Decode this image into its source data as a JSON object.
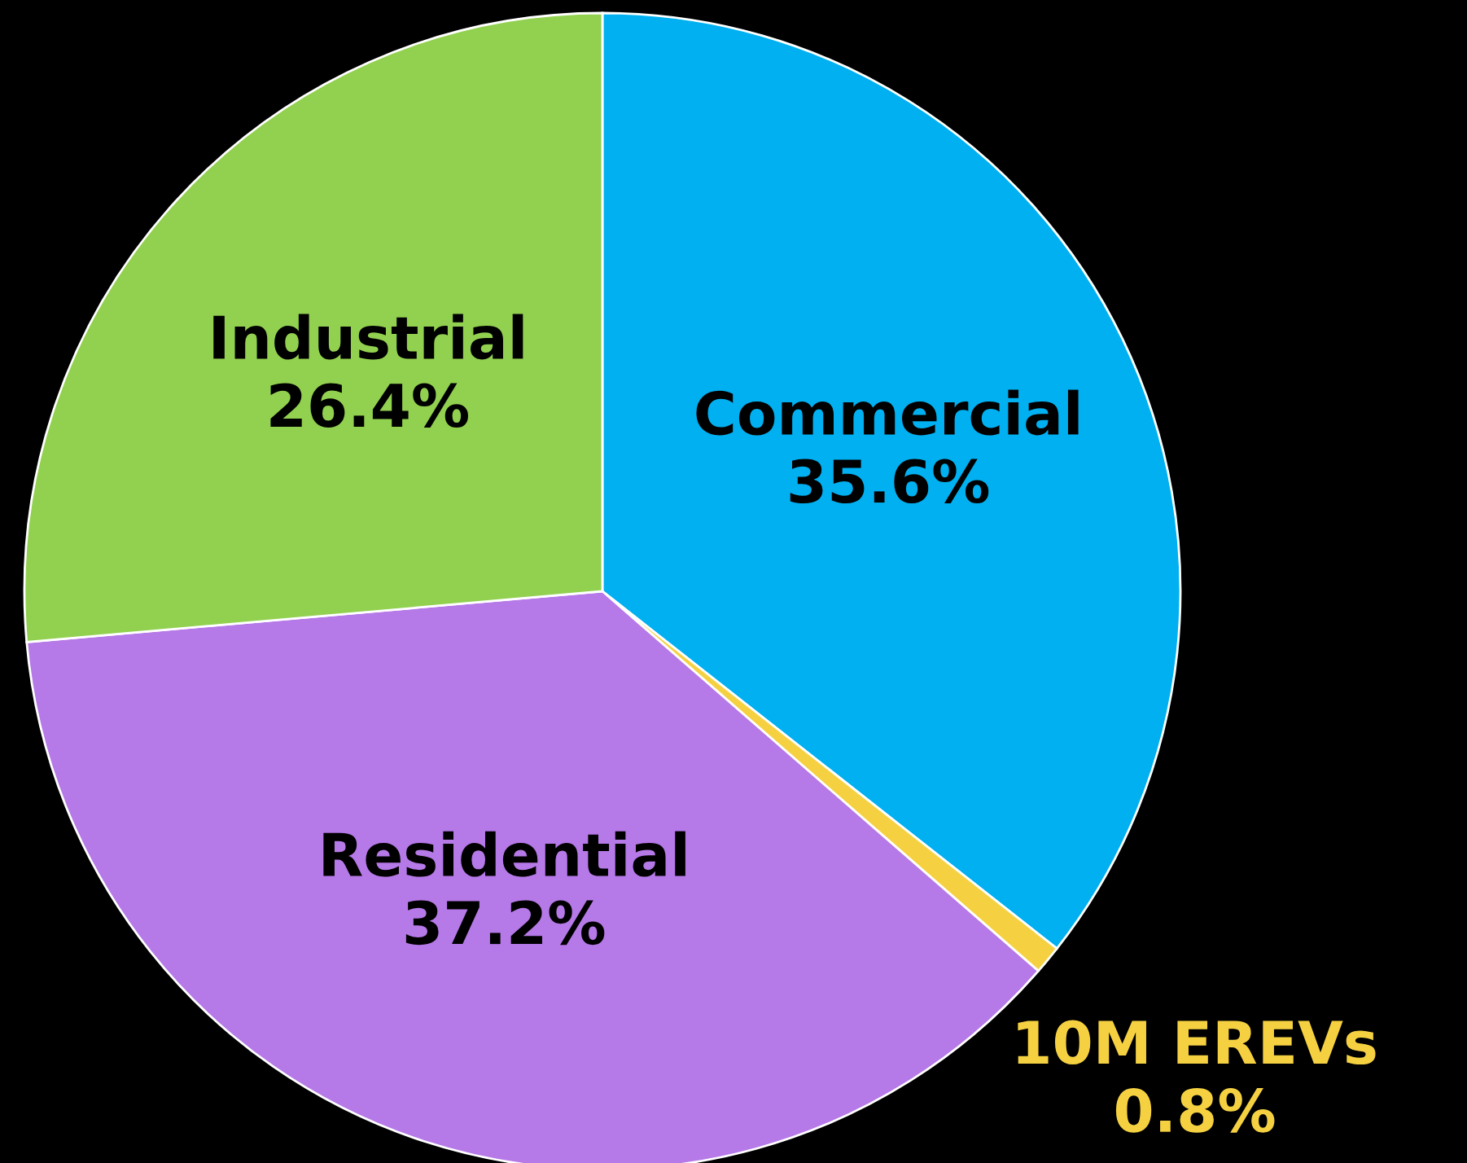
{
  "chart_data": {
    "type": "pie",
    "categories": [
      "Commercial",
      "10M EREVs",
      "Residential",
      "Industrial"
    ],
    "values": [
      35.6,
      0.8,
      37.2,
      26.4
    ],
    "value_labels": [
      "35.6%",
      "0.8%",
      "37.2%",
      "26.4%"
    ],
    "colors": [
      "#00b0f0",
      "#f5d142",
      "#b679e8",
      "#92d050"
    ]
  }
}
